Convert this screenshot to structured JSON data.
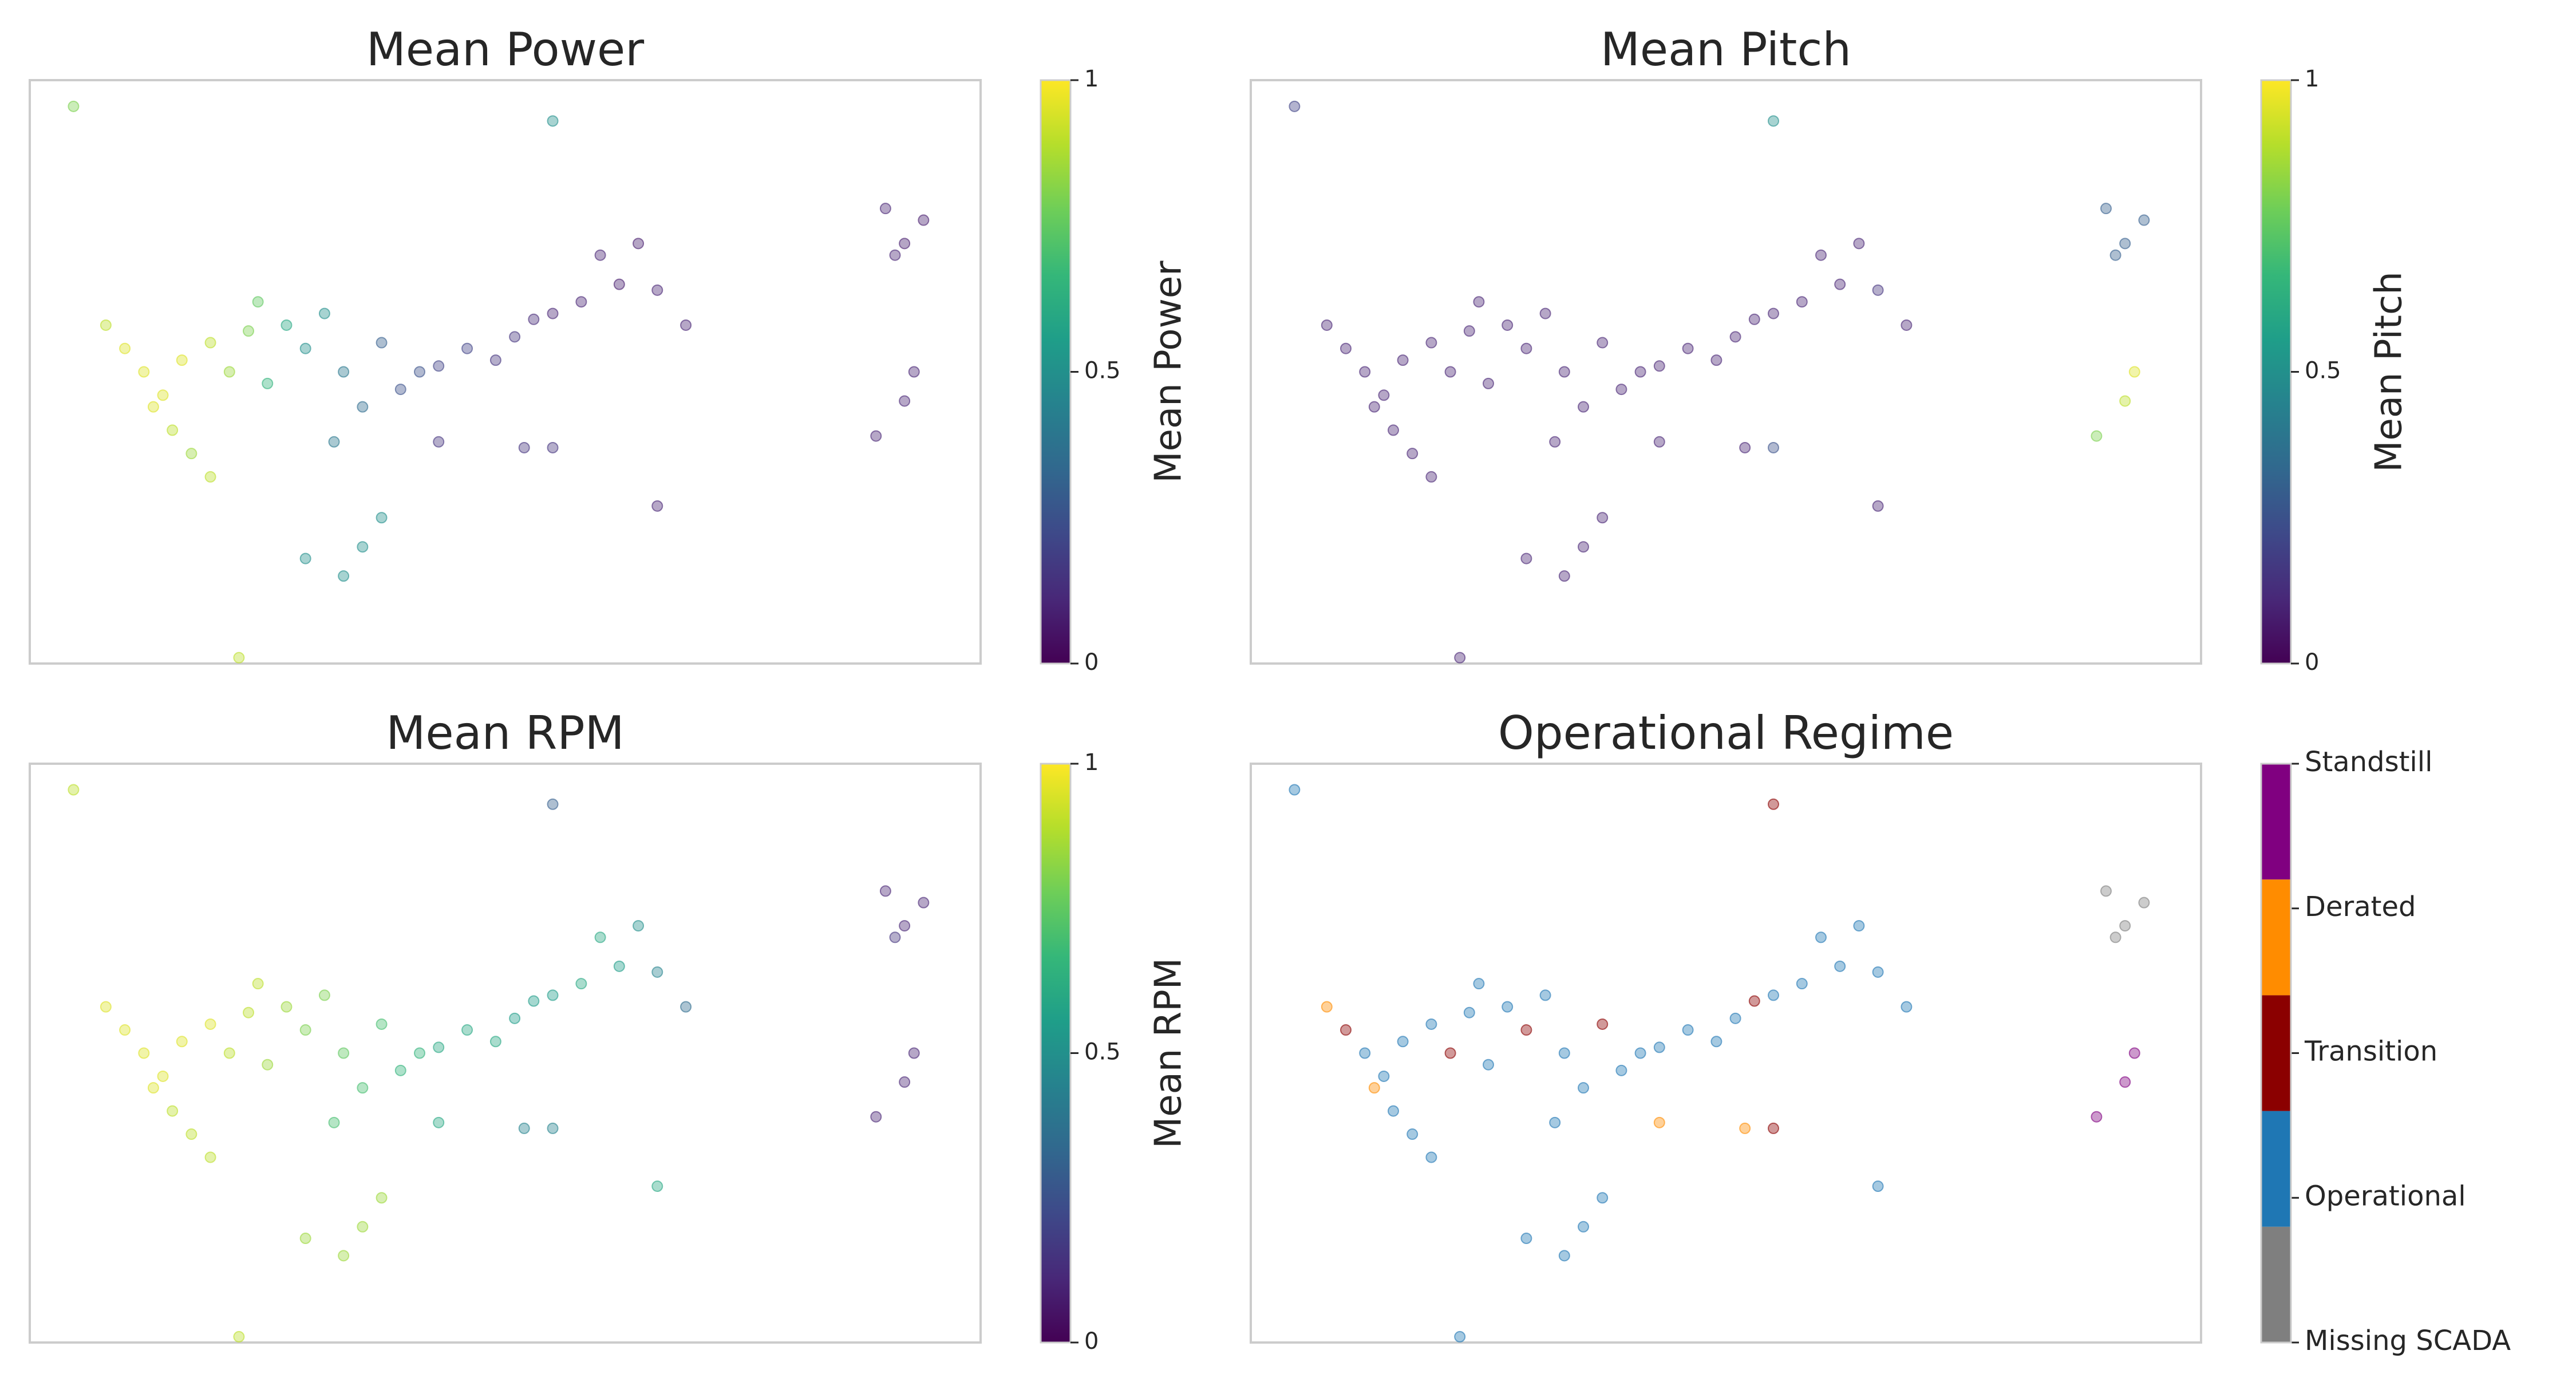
{
  "chart_data": [
    {
      "type": "scatter",
      "title": "Mean Power",
      "colorbar_label": "Mean Power",
      "colormap": "viridis",
      "clim": [
        0,
        1
      ],
      "cticks": [
        0,
        0.5,
        1
      ],
      "xlim": [
        0,
        100
      ],
      "ylim": [
        0,
        100
      ],
      "x": [
        4.6,
        8,
        10,
        12,
        14,
        15,
        17,
        19,
        13,
        16,
        19,
        21,
        23,
        24,
        25,
        27,
        29,
        31,
        33,
        35,
        37,
        39,
        41,
        43,
        46,
        49,
        51,
        53,
        55,
        58,
        60,
        62,
        64,
        66,
        69,
        32,
        37,
        35,
        33,
        29,
        22,
        55,
        55,
        66,
        90,
        92,
        94,
        91,
        93,
        92,
        89,
        43,
        52
      ],
      "y": [
        95.5,
        58,
        54,
        50,
        46,
        40,
        36,
        32,
        44,
        52,
        55,
        50,
        57,
        62,
        48,
        58,
        54,
        60,
        50,
        44,
        55,
        47,
        50,
        51,
        54,
        52,
        56,
        59,
        60,
        62,
        70,
        65,
        72,
        64,
        58,
        38,
        25,
        20,
        15,
        18,
        1,
        37,
        93,
        27,
        78,
        72,
        76,
        70,
        50,
        45,
        39,
        38,
        37
      ],
      "values": [
        0.8,
        0.9,
        0.95,
        0.95,
        0.95,
        0.9,
        0.85,
        0.9,
        0.95,
        0.95,
        0.9,
        0.85,
        0.8,
        0.75,
        0.65,
        0.6,
        0.5,
        0.5,
        0.4,
        0.35,
        0.3,
        0.25,
        0.25,
        0.2,
        0.2,
        0.15,
        0.15,
        0.12,
        0.1,
        0.1,
        0.1,
        0.08,
        0.08,
        0.1,
        0.1,
        0.4,
        0.5,
        0.5,
        0.5,
        0.5,
        0.9,
        0.15,
        0.5,
        0.1,
        0.1,
        0.08,
        0.08,
        0.1,
        0.1,
        0.1,
        0.1,
        0.15,
        0.15
      ]
    },
    {
      "type": "scatter",
      "title": "Mean Pitch",
      "colorbar_label": "Mean Pitch",
      "colormap": "viridis",
      "clim": [
        0,
        1
      ],
      "cticks": [
        0,
        0.5,
        1
      ],
      "xlim": [
        0,
        100
      ],
      "ylim": [
        0,
        100
      ],
      "x": [
        4.6,
        8,
        10,
        12,
        14,
        15,
        17,
        19,
        13,
        16,
        19,
        21,
        23,
        24,
        25,
        27,
        29,
        31,
        33,
        35,
        37,
        39,
        41,
        43,
        46,
        49,
        51,
        53,
        55,
        58,
        60,
        62,
        64,
        66,
        69,
        32,
        37,
        35,
        33,
        29,
        22,
        55,
        55,
        66,
        90,
        92,
        94,
        91,
        93,
        92,
        89,
        43,
        52
      ],
      "y": [
        95.5,
        58,
        54,
        50,
        46,
        40,
        36,
        32,
        44,
        52,
        55,
        50,
        57,
        62,
        48,
        58,
        54,
        60,
        50,
        44,
        55,
        47,
        50,
        51,
        54,
        52,
        56,
        59,
        60,
        62,
        70,
        65,
        72,
        64,
        58,
        38,
        25,
        20,
        15,
        18,
        1,
        37,
        93,
        27,
        78,
        72,
        76,
        70,
        50,
        45,
        39,
        38,
        37
      ],
      "values": [
        0.2,
        0.1,
        0.1,
        0.1,
        0.1,
        0.1,
        0.1,
        0.1,
        0.1,
        0.1,
        0.1,
        0.1,
        0.1,
        0.1,
        0.1,
        0.1,
        0.1,
        0.1,
        0.1,
        0.1,
        0.1,
        0.1,
        0.1,
        0.1,
        0.1,
        0.1,
        0.1,
        0.1,
        0.1,
        0.1,
        0.1,
        0.1,
        0.1,
        0.15,
        0.1,
        0.1,
        0.1,
        0.1,
        0.1,
        0.1,
        0.1,
        0.25,
        0.5,
        0.1,
        0.3,
        0.3,
        0.3,
        0.3,
        0.95,
        0.9,
        0.8,
        0.1,
        0.1
      ]
    },
    {
      "type": "scatter",
      "title": "Mean RPM",
      "colorbar_label": "Mean RPM",
      "colormap": "viridis",
      "clim": [
        0,
        1
      ],
      "cticks": [
        0,
        0.5,
        1
      ],
      "xlim": [
        0,
        100
      ],
      "ylim": [
        0,
        100
      ],
      "x": [
        4.6,
        8,
        10,
        12,
        14,
        15,
        17,
        19,
        13,
        16,
        19,
        21,
        23,
        24,
        25,
        27,
        29,
        31,
        33,
        35,
        37,
        39,
        41,
        43,
        46,
        49,
        51,
        53,
        55,
        58,
        60,
        62,
        64,
        66,
        69,
        32,
        37,
        35,
        33,
        29,
        22,
        55,
        55,
        66,
        90,
        92,
        94,
        91,
        93,
        92,
        89,
        43,
        52
      ],
      "y": [
        95.5,
        58,
        54,
        50,
        46,
        40,
        36,
        32,
        44,
        52,
        55,
        50,
        57,
        62,
        48,
        58,
        54,
        60,
        50,
        44,
        55,
        47,
        50,
        51,
        54,
        52,
        56,
        59,
        60,
        62,
        70,
        65,
        72,
        64,
        58,
        38,
        25,
        20,
        15,
        18,
        1,
        37,
        93,
        27,
        78,
        72,
        76,
        70,
        50,
        45,
        39,
        38,
        37
      ],
      "values": [
        0.9,
        0.95,
        0.95,
        0.95,
        0.95,
        0.9,
        0.9,
        0.9,
        0.95,
        0.95,
        0.95,
        0.9,
        0.9,
        0.9,
        0.85,
        0.85,
        0.8,
        0.8,
        0.75,
        0.7,
        0.7,
        0.65,
        0.65,
        0.6,
        0.6,
        0.6,
        0.55,
        0.55,
        0.55,
        0.6,
        0.6,
        0.55,
        0.5,
        0.45,
        0.35,
        0.7,
        0.85,
        0.85,
        0.85,
        0.85,
        0.9,
        0.45,
        0.3,
        0.6,
        0.1,
        0.1,
        0.1,
        0.15,
        0.1,
        0.1,
        0.1,
        0.6,
        0.45
      ]
    },
    {
      "type": "regime",
      "title": "Operational Regime",
      "xlim": [
        0,
        100
      ],
      "ylim": [
        0,
        100
      ],
      "series": [
        {
          "name": "Missing SCADA",
          "color": "#7f7f7f",
          "x": [
            90,
            92,
            94,
            91
          ],
          "y": [
            78,
            72,
            76,
            70
          ]
        },
        {
          "name": "Operational",
          "color": "#1f77b4",
          "x": [
            4.6,
            12,
            14,
            15,
            17,
            19,
            16,
            19,
            23,
            24,
            25,
            27,
            31,
            33,
            35,
            39,
            41,
            43,
            46,
            49,
            51,
            55,
            58,
            60,
            62,
            64,
            66,
            69,
            32,
            37,
            35,
            33,
            29,
            22,
            66
          ],
          "y": [
            95.5,
            50,
            46,
            40,
            36,
            32,
            52,
            55,
            57,
            62,
            48,
            58,
            60,
            50,
            44,
            47,
            50,
            51,
            54,
            52,
            56,
            60,
            62,
            70,
            65,
            72,
            64,
            58,
            38,
            25,
            20,
            15,
            18,
            1,
            27
          ]
        },
        {
          "name": "Transition",
          "color": "#8b0000",
          "x": [
            10,
            21,
            29,
            37,
            53,
            55,
            55
          ],
          "y": [
            54,
            50,
            54,
            55,
            59,
            37,
            93
          ]
        },
        {
          "name": "Derated",
          "color": "#ff8c00",
          "x": [
            8,
            13,
            43,
            52
          ],
          "y": [
            58,
            44,
            38,
            37
          ]
        },
        {
          "name": "Standstill",
          "color": "#800080",
          "x": [
            93,
            92,
            89
          ],
          "y": [
            50,
            45,
            39
          ]
        }
      ]
    }
  ]
}
